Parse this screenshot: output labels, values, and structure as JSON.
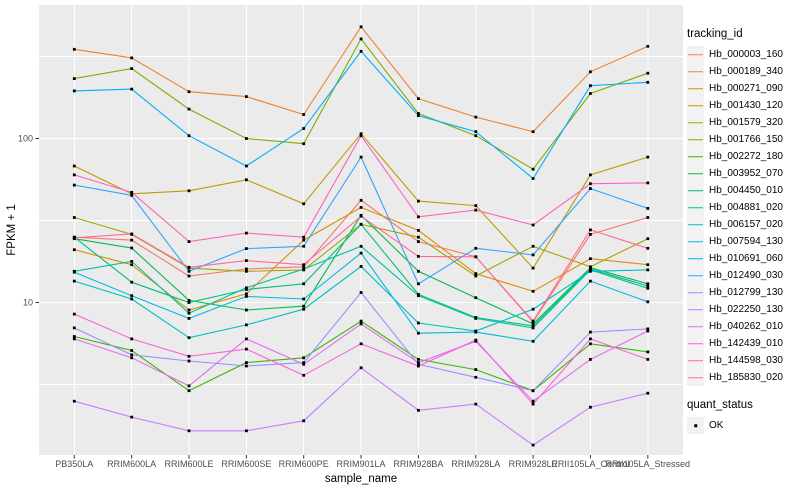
{
  "chart_data": {
    "type": "line",
    "title": "",
    "xlabel": "sample_name",
    "ylabel": "FPKM + 1",
    "yscale": "log10",
    "grid": true,
    "legend_position": "right",
    "marker": "black-square",
    "ylim": [
      1.3,
      500
    ],
    "yticks": [
      "10",
      "100"
    ],
    "categories": [
      "PB350LA",
      "RRIM600LA",
      "RRIM600LE",
      "RRIM600SE",
      "RRIM600PE",
      "RRIM901LA",
      "RRIM928BA",
      "RRIM928LA",
      "RRIM928LE",
      "RRII105LA_Control",
      "RRII105LA_Stressed"
    ],
    "series": [
      {
        "name": "Hb_000003_160",
        "color": "#F8766D",
        "values": [
          25,
          24,
          14.5,
          16,
          16.5,
          42,
          23.5,
          19,
          7.6,
          26,
          33
        ]
      },
      {
        "name": "Hb_000189_340",
        "color": "#EA8331",
        "values": [
          350,
          310,
          193,
          180,
          140,
          480,
          175,
          135,
          110,
          255,
          365
        ]
      },
      {
        "name": "Hb_000271_090",
        "color": "#D89000",
        "values": [
          21,
          17,
          9,
          11.3,
          24,
          38,
          27.5,
          15,
          11.7,
          18.5,
          17
        ]
      },
      {
        "name": "Hb_001430_120",
        "color": "#C09B00",
        "values": [
          68,
          46,
          48,
          56,
          40,
          107,
          41.5,
          39,
          16.2,
          60,
          77
        ]
      },
      {
        "name": "Hb_001579_320",
        "color": "#A3A500",
        "values": [
          33,
          26,
          16.2,
          15.5,
          15.8,
          30,
          25,
          14.5,
          22,
          16.5,
          24.5
        ]
      },
      {
        "name": "Hb_001766_150",
        "color": "#7CAE00",
        "values": [
          232,
          267,
          151,
          100,
          93,
          405,
          142,
          104,
          65,
          188,
          250
        ]
      },
      {
        "name": "Hb_002272_180",
        "color": "#39B600",
        "values": [
          6.2,
          5.1,
          2.9,
          4.3,
          4.6,
          7.7,
          4.5,
          3.9,
          2.9,
          5.6,
          5.0
        ]
      },
      {
        "name": "Hb_003952_070",
        "color": "#00BB4E",
        "values": [
          24.5,
          21.5,
          10.3,
          9.0,
          9.5,
          34,
          15.5,
          10.7,
          7.4,
          16.3,
          13.0
        ]
      },
      {
        "name": "Hb_004450_010",
        "color": "#00BF7D",
        "values": [
          25,
          13.3,
          10.0,
          12.0,
          13.0,
          30,
          11.2,
          8.1,
          7.2,
          16.0,
          12.6
        ]
      },
      {
        "name": "Hb_004881_020",
        "color": "#00C1A3",
        "values": [
          15.5,
          17.8,
          8.6,
          12.3,
          16.0,
          22,
          11.0,
          8.0,
          7.0,
          15.8,
          12.2
        ]
      },
      {
        "name": "Hb_006157_020",
        "color": "#00BFC4",
        "values": [
          13.5,
          10.5,
          6.1,
          7.3,
          9.1,
          16.6,
          7.5,
          6.7,
          9.1,
          15.5,
          15.8
        ]
      },
      {
        "name": "Hb_007594_130",
        "color": "#00BAE0",
        "values": [
          15.3,
          11.0,
          8.0,
          10.9,
          10.5,
          20,
          6.5,
          6.6,
          5.8,
          13.5,
          10.1
        ]
      },
      {
        "name": "Hb_010691_060",
        "color": "#00B0F6",
        "values": [
          195,
          200,
          104,
          68,
          115,
          340,
          138,
          110,
          57,
          210,
          220
        ]
      },
      {
        "name": "Hb_012490_030",
        "color": "#35A2FF",
        "values": [
          52,
          45,
          15.5,
          21.3,
          22,
          77,
          13,
          21.4,
          19.5,
          49.5,
          37.5
        ]
      },
      {
        "name": "Hb_012799_130",
        "color": "#9590FF",
        "values": [
          7.0,
          4.8,
          4.4,
          4.1,
          4.3,
          11.5,
          4.2,
          3.5,
          2.9,
          6.6,
          6.9
        ]
      },
      {
        "name": "Hb_022250_130",
        "color": "#C77CFF",
        "values": [
          2.5,
          2.0,
          1.65,
          1.65,
          1.9,
          4.0,
          2.2,
          2.4,
          1.35,
          2.3,
          2.8
        ]
      },
      {
        "name": "Hb_040262_010",
        "color": "#E76BF3",
        "values": [
          6.0,
          4.6,
          3.1,
          6.0,
          4.2,
          7.4,
          4.3,
          5.8,
          2.5,
          4.5,
          6.7
        ]
      },
      {
        "name": "Hb_142439_010",
        "color": "#FA62DB",
        "values": [
          8.5,
          6.0,
          4.7,
          5.2,
          3.6,
          5.6,
          4.1,
          5.9,
          2.4,
          6.0,
          4.5
        ]
      },
      {
        "name": "Hb_144598_030",
        "color": "#FF62BC",
        "values": [
          60,
          47,
          23.5,
          26.5,
          25,
          104,
          33.3,
          36.6,
          29.7,
          53,
          53.6
        ]
      },
      {
        "name": "Hb_185830_020",
        "color": "#FF6A98",
        "values": [
          24.8,
          26.2,
          16.4,
          18,
          17,
          33.6,
          19.1,
          19,
          7.7,
          27.7,
          21.4
        ]
      }
    ],
    "legend": {
      "color_title": "tracking_id",
      "shape_title": "quant_status",
      "shape_items": [
        {
          "label": "OK"
        }
      ]
    }
  },
  "colors": {
    "page_bg": "#FFFFFF",
    "panel_bg": "#EBEBEB",
    "grid": "#FFFFFF",
    "axis_text": "#4D4D4D",
    "title_text": "#000000",
    "marker": "#000000",
    "legend_key_bg": "#F2F2F2"
  }
}
